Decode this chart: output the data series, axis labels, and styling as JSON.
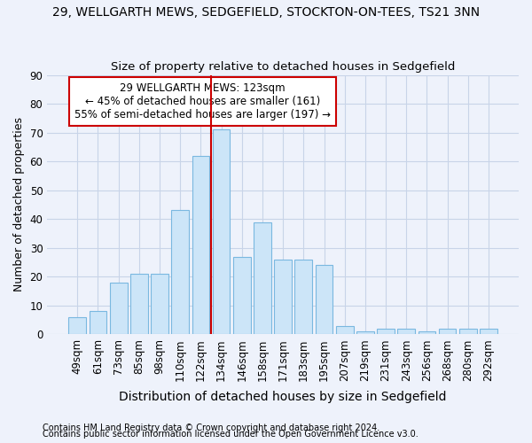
{
  "title": "29, WELLGARTH MEWS, SEDGEFIELD, STOCKTON-ON-TEES, TS21 3NN",
  "subtitle": "Size of property relative to detached houses in Sedgefield",
  "xlabel": "Distribution of detached houses by size in Sedgefield",
  "ylabel": "Number of detached properties",
  "categories": [
    "49sqm",
    "61sqm",
    "73sqm",
    "85sqm",
    "98sqm",
    "110sqm",
    "122sqm",
    "134sqm",
    "146sqm",
    "158sqm",
    "171sqm",
    "183sqm",
    "195sqm",
    "207sqm",
    "219sqm",
    "231sqm",
    "243sqm",
    "256sqm",
    "268sqm",
    "280sqm",
    "292sqm"
  ],
  "values": [
    6,
    8,
    18,
    21,
    21,
    43,
    62,
    71,
    27,
    39,
    26,
    26,
    24,
    3,
    1,
    2,
    2,
    1,
    2,
    2,
    2
  ],
  "bar_color": "#cce5f8",
  "bar_edge_color": "#7ab8e0",
  "vline_x": 6.5,
  "vline_color": "#cc0000",
  "annotation_line1": "29 WELLGARTH MEWS: 123sqm",
  "annotation_line2": "← 45% of detached houses are smaller (161)",
  "annotation_line3": "55% of semi-detached houses are larger (197) →",
  "annotation_box_color": "#ffffff",
  "annotation_box_edge": "#cc0000",
  "ylim": [
    0,
    90
  ],
  "yticks": [
    0,
    10,
    20,
    30,
    40,
    50,
    60,
    70,
    80,
    90
  ],
  "footnote1": "Contains HM Land Registry data © Crown copyright and database right 2024.",
  "footnote2": "Contains public sector information licensed under the Open Government Licence v3.0.",
  "bg_color": "#eef2fb",
  "plot_bg_color": "#eef2fb",
  "title_fontsize": 10,
  "subtitle_fontsize": 9.5,
  "xlabel_fontsize": 10,
  "ylabel_fontsize": 9,
  "tick_fontsize": 8.5,
  "footnote_fontsize": 7
}
